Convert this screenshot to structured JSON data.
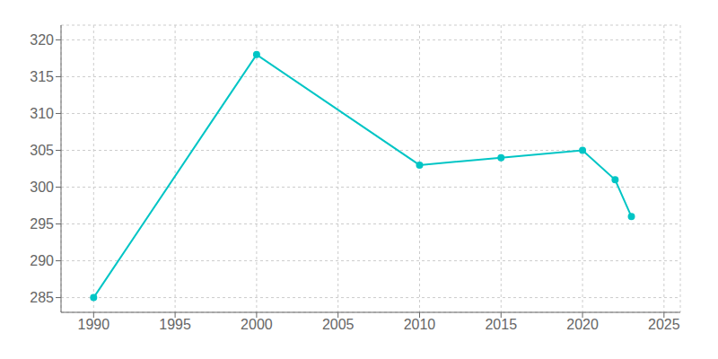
{
  "chart_data": {
    "type": "line",
    "x": [
      1990,
      2000,
      2010,
      2015,
      2020,
      2022,
      2023
    ],
    "values": [
      285,
      318,
      303,
      304,
      305,
      301,
      296
    ],
    "color": "#00C5C5",
    "marker": "circle",
    "xlim": [
      1988,
      2026
    ],
    "ylim": [
      283,
      322
    ],
    "xticks": [
      1990,
      1995,
      2000,
      2005,
      2010,
      2015,
      2020,
      2025
    ],
    "yticks": [
      285,
      290,
      295,
      300,
      305,
      310,
      315,
      320
    ],
    "grid": true
  }
}
